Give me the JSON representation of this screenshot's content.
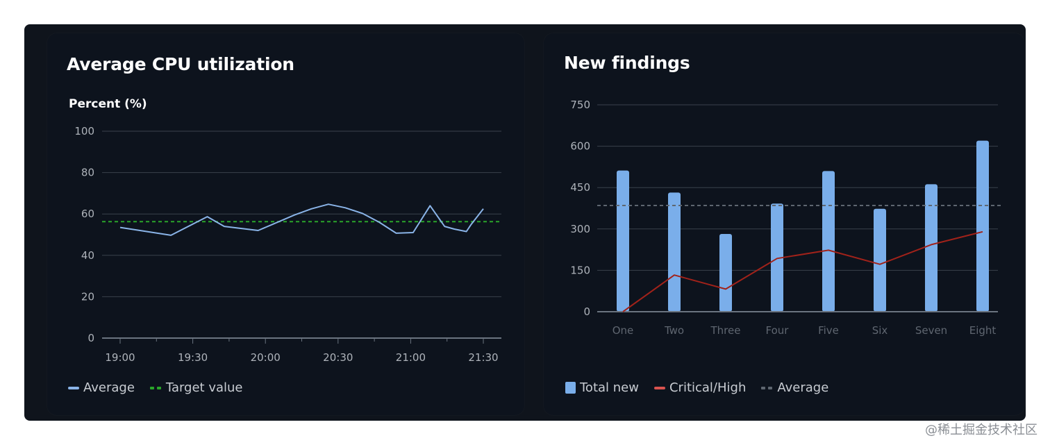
{
  "watermark": "@稀土掘金技术社区",
  "colors": {
    "frame": "#0f141c",
    "card": "#0d131d",
    "grid": "#3a424d",
    "axis": "#6b7480",
    "cpu_line": "#8ab4e8",
    "target": "#2aa52a",
    "bar": "#7aaeea",
    "critical": "#a1221a",
    "average": "#5e6670"
  },
  "cpu_card": {
    "title": "Average CPU utilization",
    "legend": [
      "Average",
      "Target value"
    ]
  },
  "findings_card": {
    "title": "New findings",
    "legend": [
      "Total new",
      "Critical/High",
      "Average"
    ]
  },
  "chart_data": [
    {
      "type": "line",
      "title": "Average CPU utilization",
      "ylabel": "Percent (%)",
      "ylim": [
        0,
        100
      ],
      "yticks": [
        0,
        20,
        40,
        60,
        80,
        100
      ],
      "xlim": [
        0,
        155
      ],
      "xticks": [
        {
          "value": 0,
          "label": "19:00"
        },
        {
          "value": 30,
          "label": "19:30"
        },
        {
          "value": 60,
          "label": "20:00"
        },
        {
          "value": 90,
          "label": "20:30"
        },
        {
          "value": 120,
          "label": "21:00"
        },
        {
          "value": 150,
          "label": "21:30"
        }
      ],
      "x_minor_ticks": [
        15,
        45,
        75,
        105,
        135
      ],
      "series": [
        {
          "name": "Average",
          "x": [
            0,
            21,
            36,
            43,
            57,
            72,
            79,
            86,
            93,
            100,
            107,
            114,
            121,
            128,
            134,
            138,
            143,
            145,
            150
          ],
          "values": [
            53.5,
            49.7,
            58.7,
            54,
            52,
            59.5,
            62.5,
            64.7,
            63,
            60.3,
            56,
            50.7,
            51,
            64,
            54,
            52.7,
            51.5,
            55,
            62.5
          ]
        },
        {
          "name": "Target value",
          "constant": 56.3
        }
      ]
    },
    {
      "type": "bar",
      "title": "New findings",
      "categories": [
        "One",
        "Two",
        "Three",
        "Four",
        "Five",
        "Six",
        "Seven",
        "Eight"
      ],
      "ylim": [
        0,
        750
      ],
      "yticks": [
        0,
        150,
        300,
        450,
        600,
        750
      ],
      "series": [
        {
          "name": "Total new",
          "type": "bar",
          "values": [
            512,
            432,
            282,
            392,
            510,
            373,
            462,
            620
          ]
        },
        {
          "name": "Critical/High",
          "type": "line",
          "values": [
            0,
            133,
            82,
            193,
            223,
            172,
            243,
            290
          ]
        },
        {
          "name": "Average",
          "type": "reference",
          "value": 385
        }
      ]
    }
  ]
}
